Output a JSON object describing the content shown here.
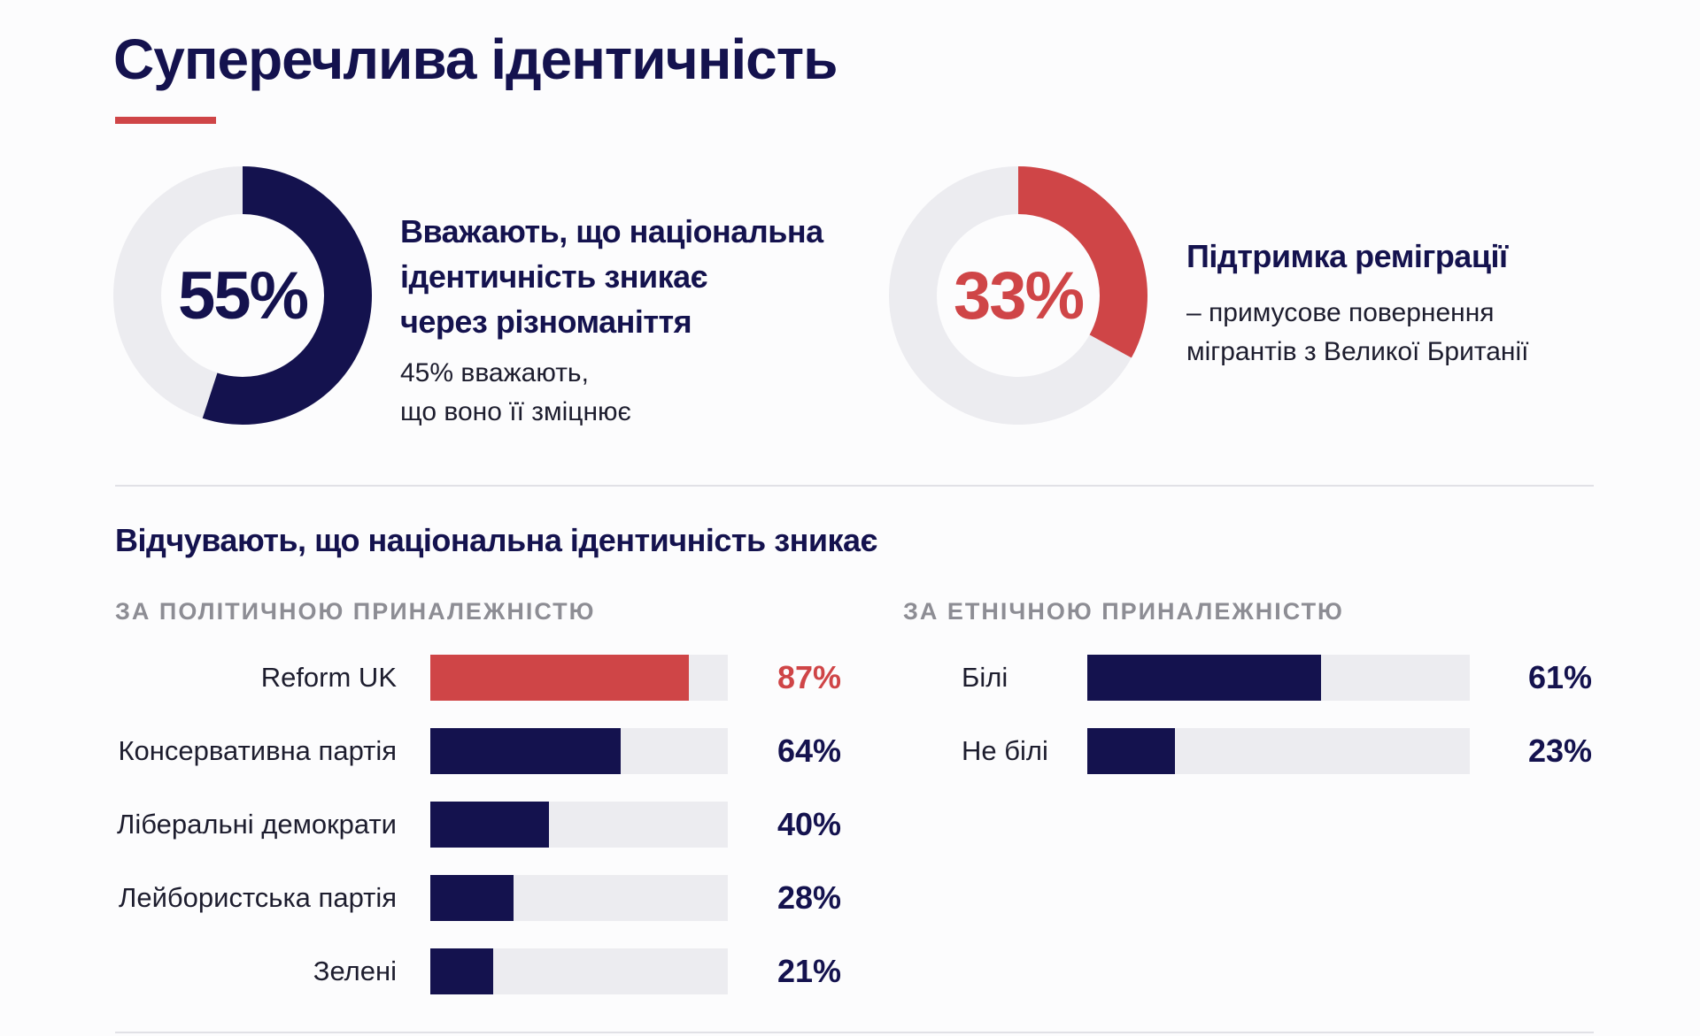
{
  "page": {
    "title": "Суперечлива ідентичність"
  },
  "colors": {
    "navy": "#14124e",
    "red": "#cf4547",
    "track": "#ececf0",
    "gray_text": "#8d8d94"
  },
  "stats": [
    {
      "value_label": "55%",
      "value": 55,
      "color": "#14124e",
      "headline": [
        "Вважають, що національна",
        "ідентичність зникає",
        "через різноманіття"
      ],
      "sub": [
        "45% вважають,",
        "що воно її зміцнює"
      ]
    },
    {
      "value_label": "33%",
      "value": 33,
      "color": "#cf4547",
      "headline": [
        "Підтримка реміграції"
      ],
      "sub": [
        "– примусове повернення",
        "мігрантів з Великої Британії"
      ]
    }
  ],
  "section_title": "Відчувають, що національна ідентичність зникає",
  "chart_data": [
    {
      "type": "bar",
      "orientation": "horizontal",
      "title": "ЗА ПОЛІТИЧНОЮ ПРИНАЛЕЖНІСТЮ",
      "categories": [
        "Reform UK",
        "Консервативна партія",
        "Ліберальні демократи",
        "Лейбористська партія",
        "Зелені"
      ],
      "values": [
        87,
        64,
        40,
        28,
        21
      ],
      "value_labels": [
        "87%",
        "64%",
        "40%",
        "28%",
        "21%"
      ],
      "colors": [
        "#cf4547",
        "#14124e",
        "#14124e",
        "#14124e",
        "#14124e"
      ],
      "xlim": [
        0,
        100
      ]
    },
    {
      "type": "bar",
      "orientation": "horizontal",
      "title": "ЗА ЕТНІЧНОЮ ПРИНАЛЕЖНІСТЮ",
      "categories": [
        "Білі",
        "Не білі"
      ],
      "values": [
        61,
        23
      ],
      "value_labels": [
        "61%",
        "23%"
      ],
      "colors": [
        "#14124e",
        "#14124e"
      ],
      "xlim": [
        0,
        100
      ]
    }
  ]
}
